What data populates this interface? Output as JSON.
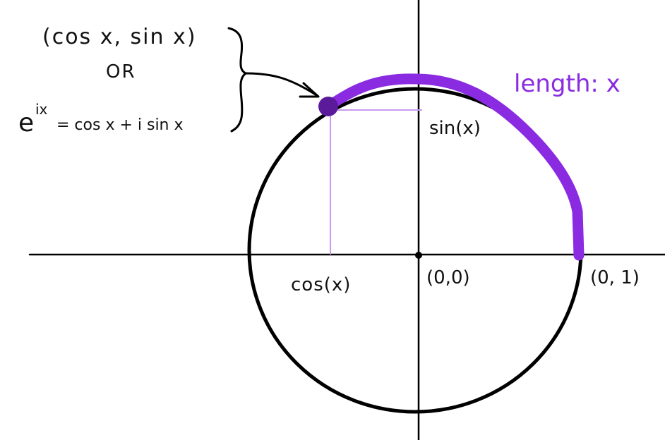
{
  "labels": {
    "point_coords": "(cos x, sin x)",
    "or_text": "OR",
    "euler_base": "e",
    "euler_exponent": "ix",
    "euler_rhs": "= cos x + i sin x",
    "arc_length": "length: x",
    "sin": "sin(x)",
    "cos": "cos(x)",
    "origin": "(0,0)",
    "unit_point": "(0, 1)"
  },
  "colors": {
    "arc": "#8a2be2",
    "point": "#5a1a9a",
    "projection": "#c79af0",
    "axis": "#000000",
    "circle": "#000000"
  }
}
